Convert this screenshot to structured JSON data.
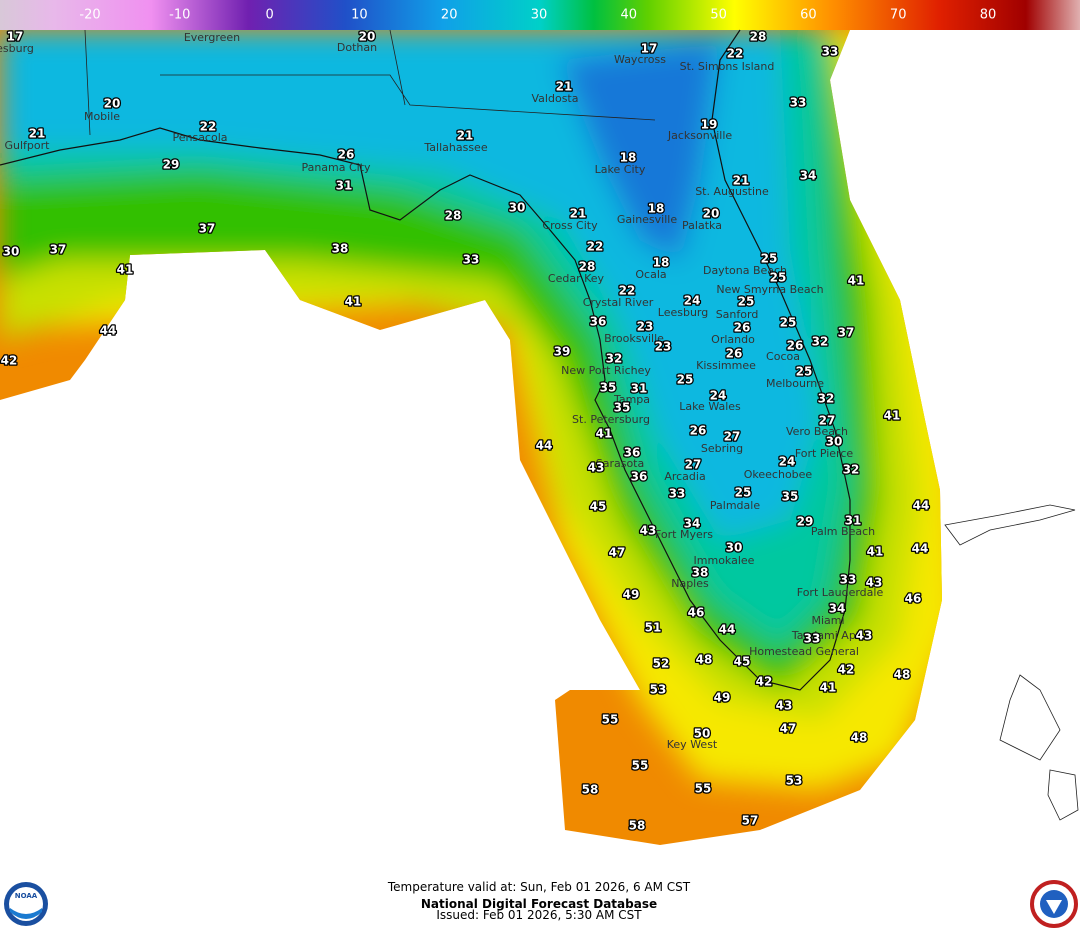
{
  "colorbar": {
    "ticks": [
      -20,
      -10,
      0,
      10,
      20,
      30,
      40,
      50,
      60,
      70,
      80
    ]
  },
  "cities": [
    "Evergreen",
    "Dothan",
    "esburg",
    "Waycross",
    "St. Simons Island",
    "Mobile",
    "Valdosta",
    "Gulfport",
    "Pensacola",
    "Tallahassee",
    "Jacksonville",
    "Panama City",
    "Lake City",
    "St. Augustine",
    "Cross City",
    "Gainesville",
    "Palatka",
    "Cedar Key",
    "Ocala",
    "Daytona Beach",
    "New Smyrna Beach",
    "Crystal River",
    "Leesburg",
    "Sanford",
    "Brooksville",
    "Orlando",
    "Cocoa",
    "New Port Richey",
    "Kissimmee",
    "Tampa",
    "Melbourne",
    "Lake Wales",
    "St. Petersburg",
    "Vero Beach",
    "Sebring",
    "Fort Pierce",
    "Sarasota",
    "Okeechobee",
    "Arcadia",
    "Palmdale",
    "Palm Beach",
    "Fort Myers",
    "Immokalee",
    "Naples",
    "Fort Lauderdale",
    "Miami",
    "Tamiami Apt",
    "Homestead General",
    "Key West"
  ],
  "temperatures": [
    17,
    20,
    28,
    17,
    22,
    33,
    21,
    20,
    33,
    22,
    19,
    21,
    21,
    26,
    18,
    29,
    31,
    21,
    34,
    28,
    30,
    21,
    18,
    20,
    37,
    22,
    30,
    37,
    38,
    33,
    25,
    18,
    28,
    41,
    25,
    41,
    22,
    24,
    25,
    41,
    36,
    25,
    23,
    26,
    37,
    32,
    44,
    26,
    23,
    39,
    26,
    32,
    42,
    25,
    35,
    31,
    25,
    24,
    32,
    35,
    41,
    27,
    41,
    26,
    27,
    30,
    44,
    36,
    24,
    27,
    32,
    43,
    36,
    33,
    25,
    35,
    45,
    44,
    34,
    29,
    31,
    43,
    30,
    44,
    41,
    47,
    38,
    33,
    43,
    49,
    46,
    46,
    34,
    51,
    44,
    33,
    43,
    52,
    48,
    45,
    42,
    48,
    53,
    42,
    41,
    49,
    55,
    43,
    47,
    50,
    48,
    55,
    53,
    58,
    55,
    57,
    58
  ],
  "footer": {
    "valid": "Temperature valid at: Sun, Feb 01 2026, 6 AM CST",
    "source": "National Digital Forecast Database",
    "issued": "Issued: Feb 01 2026, 5:30 AM CST"
  },
  "logos": {
    "noaa": "NOAA"
  }
}
